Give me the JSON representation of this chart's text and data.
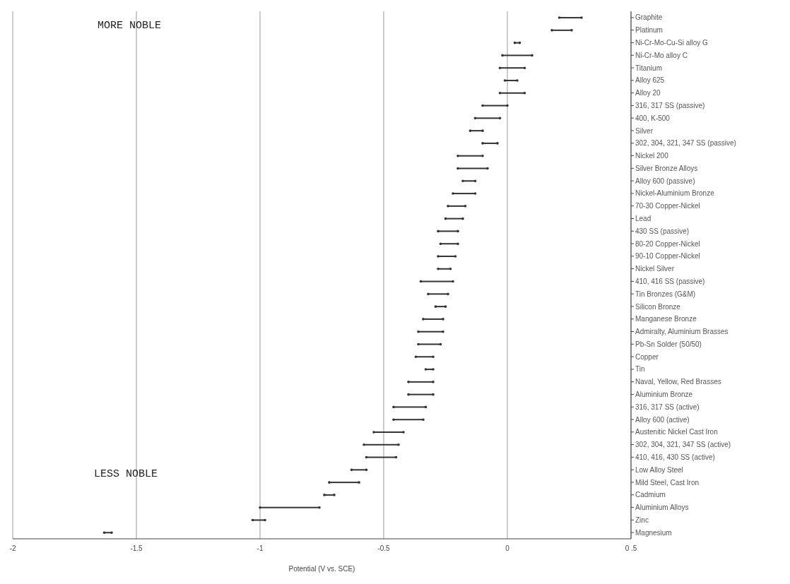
{
  "chart_data": {
    "type": "bar",
    "orientation": "horizontal",
    "xlabel": "Potential (V vs. SCE)",
    "categories": [
      "Graphite",
      "Platinum",
      "Ni-Cr-Mo-Cu-Si alloy G",
      "Ni-Cr-Mo alloy C",
      "Titanium",
      "Alloy 625",
      "Alloy 20",
      "316, 317 SS  (passive)",
      "400, K-500",
      "Silver",
      "302, 304, 321, 347 SS (passive)",
      "Nickel 200",
      "Silver Bronze Alloys",
      "Alloy 600 (passive)",
      "Nickel-Aluminium Bronze",
      "70-30 Copper-Nickel",
      "Lead",
      "430 SS (passive)",
      "80-20 Copper-Nickel",
      "90-10 Copper-Nickel",
      "Nickel Silver",
      "410,  416 SS (passive)",
      "Tin Bronzes (G&M)",
      "Silicon Bronze",
      "Manganese Bronze",
      "Admiralty, Aluminium Brasses",
      "Pb-Sn Solder (50/50)",
      "Copper",
      "Tin",
      "Naval, Yellow, Red Brasses",
      "Aluminium Bronze",
      "316, 317 SS (active)",
      "Alloy 600 (active)",
      "Austenitic Nickel Cast Iron",
      "302, 304, 321, 347 SS (active)",
      "410, 416, 430 SS (active)",
      "Low Alloy Steel",
      "Mild Steel, Cast Iron",
      "Cadmium",
      "Aluminium Alloys",
      "Zinc",
      "Magnesium"
    ],
    "base": [
      0.21,
      0.18,
      0.03,
      -0.02,
      -0.03,
      -0.01,
      -0.03,
      -0.1,
      -0.13,
      -0.15,
      -0.1,
      -0.2,
      -0.2,
      -0.18,
      -0.22,
      -0.24,
      -0.25,
      -0.28,
      -0.27,
      -0.28,
      -0.28,
      -0.35,
      -0.32,
      -0.29,
      -0.34,
      -0.36,
      -0.36,
      -0.37,
      -0.33,
      -0.4,
      -0.4,
      -0.46,
      -0.46,
      -0.54,
      -0.58,
      -0.57,
      -0.63,
      -0.72,
      -0.74,
      -1.0,
      -1.03,
      -1.63
    ],
    "values": [
      0.09,
      0.08,
      0.02,
      0.12,
      0.1,
      0.05,
      0.1,
      0.1,
      0.1,
      0.05,
      0.06,
      0.1,
      0.12,
      0.05,
      0.09,
      0.07,
      0.07,
      0.08,
      0.07,
      0.07,
      0.05,
      0.13,
      0.08,
      0.04,
      0.08,
      0.1,
      0.09,
      0.07,
      0.03,
      0.1,
      0.1,
      0.13,
      0.12,
      0.12,
      0.14,
      0.12,
      0.06,
      0.12,
      0.04,
      0.24,
      0.05,
      0.03
    ],
    "color": "#333333",
    "marker": "circle",
    "grid": "x",
    "xlim": [
      -2,
      0.5
    ],
    "xticks": [
      -2,
      -1.5,
      -1,
      -0.5,
      0,
      {
        "value": 0.5,
        "label": "0 .5"
      }
    ],
    "annotations": [
      "MORE NOBLE",
      "LESS NOBLE"
    ]
  }
}
